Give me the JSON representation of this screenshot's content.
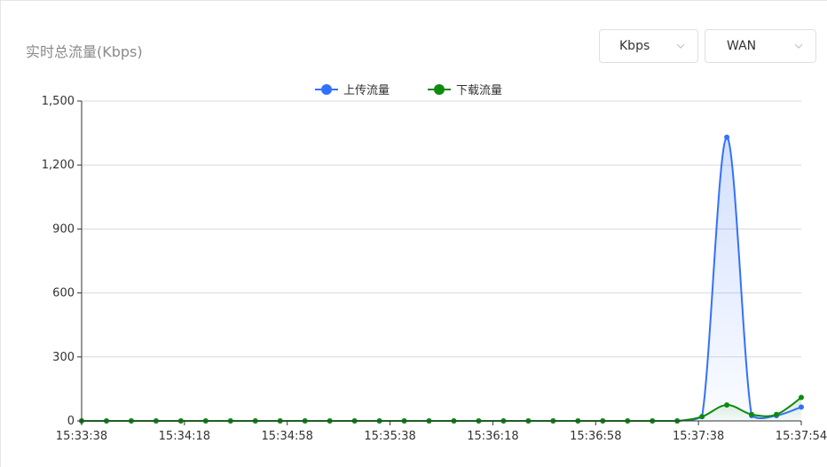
{
  "header": {
    "title": "实时总流量(Kbps)"
  },
  "controls": {
    "unit_select": {
      "value": "Kbps"
    },
    "interface_select": {
      "value": "WAN"
    }
  },
  "colors": {
    "upload": "#3370ff",
    "download": "#0e8a0e",
    "grid": "#d9d9d9",
    "axis": "#333333"
  },
  "chart_data": {
    "type": "area",
    "title": "实时总流量(Kbps)",
    "xlabel": "",
    "ylabel": "",
    "x_ticks": [
      "15:33:38",
      "15:34:18",
      "15:34:58",
      "15:35:38",
      "15:36:18",
      "15:36:58",
      "15:37:38",
      "15:37:54"
    ],
    "x_count": 30,
    "ylim": [
      0,
      1500
    ],
    "y_ticks": [
      0,
      300,
      600,
      900,
      1200,
      1500
    ],
    "y_tick_labels": [
      "0",
      "300",
      "600",
      "900",
      "1,200",
      "1,500"
    ],
    "grid": true,
    "legend": "top-center",
    "series": [
      {
        "name": "上传流量",
        "values": [
          0,
          0,
          0,
          0,
          0,
          0,
          0,
          0,
          0,
          0,
          0,
          0,
          0,
          0,
          0,
          0,
          0,
          0,
          0,
          0,
          0,
          0,
          0,
          0,
          0,
          20,
          1330,
          25,
          25,
          65
        ]
      },
      {
        "name": "下载流量",
        "values": [
          0,
          0,
          0,
          0,
          0,
          0,
          0,
          0,
          0,
          0,
          0,
          0,
          0,
          0,
          0,
          0,
          0,
          0,
          0,
          0,
          0,
          0,
          0,
          0,
          0,
          20,
          75,
          30,
          30,
          110
        ]
      }
    ]
  }
}
